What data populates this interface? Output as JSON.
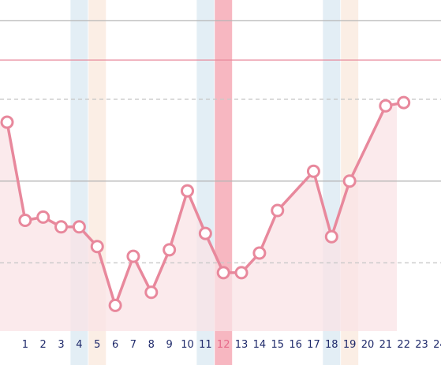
{
  "chart_data": {
    "type": "line",
    "x": [
      0,
      1,
      2,
      3,
      4,
      5,
      6,
      7,
      8,
      9,
      10,
      11,
      12,
      13,
      14,
      15,
      16,
      17,
      18,
      19,
      20,
      21,
      22
    ],
    "series": [
      {
        "values": [
          63,
          33,
          34,
          31,
          31,
          25,
          7,
          22,
          11,
          24,
          42,
          29,
          17,
          17,
          23,
          36,
          0,
          48,
          28,
          45,
          0,
          68,
          69
        ]
      }
    ],
    "valid_mask": [
      true,
      true,
      true,
      true,
      true,
      true,
      true,
      true,
      true,
      true,
      true,
      true,
      true,
      true,
      true,
      true,
      false,
      true,
      true,
      true,
      false,
      true,
      true
    ],
    "x_tick_labels": [
      "1",
      "2",
      "3",
      "4",
      "5",
      "6",
      "7",
      "8",
      "9",
      "10",
      "11",
      "12",
      "13",
      "14",
      "15",
      "16",
      "17",
      "18",
      "19",
      "20",
      "21",
      "22",
      "23",
      "24"
    ],
    "highlighted_tick": "12",
    "xlim": [
      0,
      24
    ],
    "ylim": [
      0,
      100
    ],
    "grid": true,
    "highlight_bands": [
      {
        "x": 4,
        "color": "#e3eef5"
      },
      {
        "x": 5,
        "color": "#fbeee5"
      },
      {
        "x": 11,
        "color": "#e3eef5"
      },
      {
        "x": 12,
        "color": "#f7b7c1"
      },
      {
        "x": 18,
        "color": "#e3eef5"
      },
      {
        "x": 19,
        "color": "#fbeee5"
      }
    ],
    "reference_lines": [
      {
        "y": 94,
        "style": "solid",
        "color": "#b5b5b5"
      },
      {
        "y": 82,
        "style": "solid",
        "color": "#e88a9c"
      },
      {
        "y": 70,
        "style": "dashed",
        "color": "#c8c8c8"
      },
      {
        "y": 45,
        "style": "solid",
        "color": "#b5b5b5"
      },
      {
        "y": 20,
        "style": "dashed",
        "color": "#c8c8c8"
      }
    ],
    "colors": {
      "line": "#e8889c",
      "marker_fill": "#ffffff",
      "area_fill": "#fae3e6",
      "tick_text": "#1f2a6b",
      "highlight_tick_text": "#e66a8a"
    }
  }
}
